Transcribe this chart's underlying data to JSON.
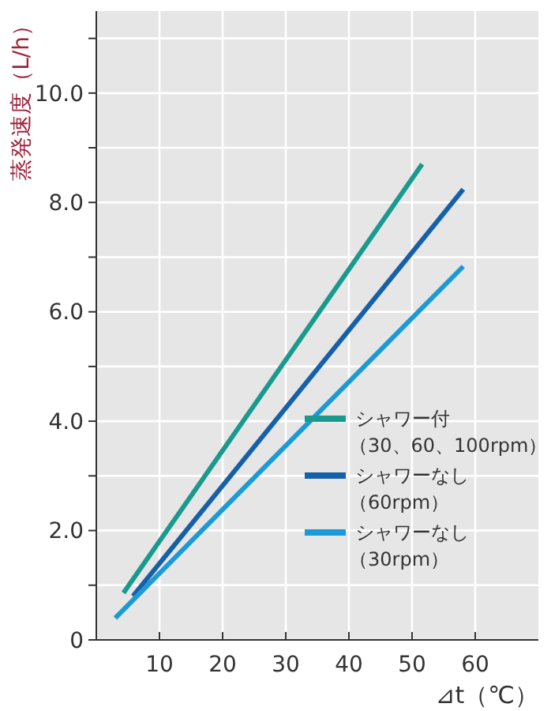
{
  "chart_data": {
    "type": "line",
    "xlabel": "⊿t（℃）",
    "ylabel": "蒸発速度（L/h）",
    "xlim": [
      0,
      70
    ],
    "ylim": [
      0,
      11.5
    ],
    "xticks": [
      10,
      20,
      30,
      40,
      50,
      60
    ],
    "yticks": [
      {
        "value": 0,
        "label": "0"
      },
      {
        "value": 1,
        "label": null
      },
      {
        "value": 2,
        "label": "2.0"
      },
      {
        "value": 3,
        "label": null
      },
      {
        "value": 4,
        "label": "4.0"
      },
      {
        "value": 5,
        "label": null
      },
      {
        "value": 6,
        "label": "6.0"
      },
      {
        "value": 7,
        "label": null
      },
      {
        "value": 8,
        "label": "8.0"
      },
      {
        "value": 9,
        "label": null
      },
      {
        "value": 10,
        "label": "10.0"
      },
      {
        "value": 11,
        "label": null
      }
    ],
    "grid": true,
    "legend": "bottom right",
    "marker": "none",
    "line_style": "solid",
    "series": [
      {
        "name": "シャワー付（30、60、100rpm）",
        "color": "#1a9a8e",
        "x": [
          4.3,
          51.6
        ],
        "values": [
          0.86,
          8.7
        ]
      },
      {
        "name": "シャワーなし（60rpm）",
        "color": "#1560a8",
        "x": [
          5.8,
          58.1
        ],
        "values": [
          0.8,
          8.24
        ]
      },
      {
        "name": "シャワーなし（30rpm）",
        "color": "#1a9ad6",
        "x": [
          3.0,
          58.1
        ],
        "values": [
          0.4,
          6.83
        ]
      }
    ]
  }
}
